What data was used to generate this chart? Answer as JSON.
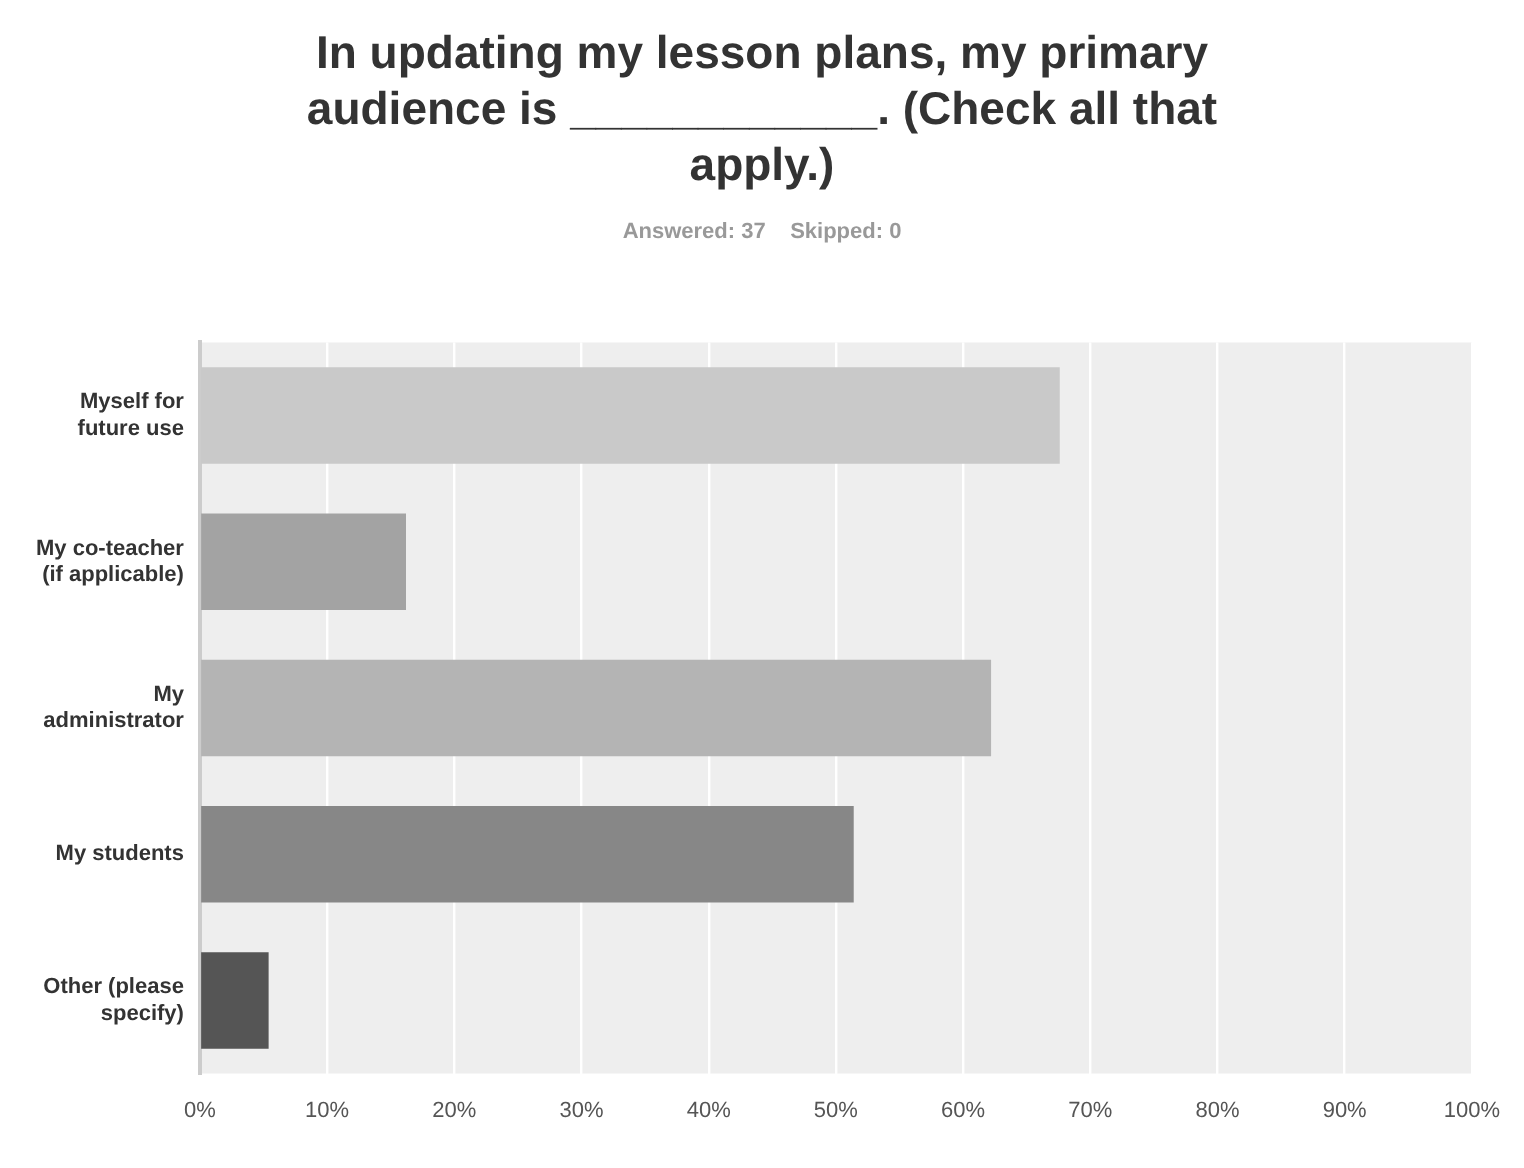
{
  "chart_data": {
    "type": "bar",
    "orientation": "horizontal",
    "title": "In updating my lesson plans, my primary audience is ____________. (Check all that apply.)",
    "subtitle": "Answered: 37    Skipped: 0",
    "categories": [
      "Myself for future use",
      "My co-teacher (if applicable)",
      "My administrator",
      "My students",
      "Other (please specify)"
    ],
    "values": [
      67.6,
      16.2,
      62.2,
      51.4,
      5.4
    ],
    "colors": [
      "#c9c9c9",
      "#a3a3a3",
      "#b4b4b4",
      "#878787",
      "#555555"
    ],
    "xlim": [
      0,
      100
    ],
    "xticks": [
      {
        "value": 0,
        "label": "0%"
      },
      {
        "value": 10,
        "label": "10%"
      },
      {
        "value": 20,
        "label": "20%"
      },
      {
        "value": 30,
        "label": "30%"
      },
      {
        "value": 40,
        "label": "40%"
      },
      {
        "value": 50,
        "label": "50%"
      },
      {
        "value": 60,
        "label": "60%"
      },
      {
        "value": 70,
        "label": "70%"
      },
      {
        "value": 80,
        "label": "80%"
      },
      {
        "value": 90,
        "label": "90%"
      },
      {
        "value": 100,
        "label": "100%"
      }
    ],
    "grid": "x"
  }
}
